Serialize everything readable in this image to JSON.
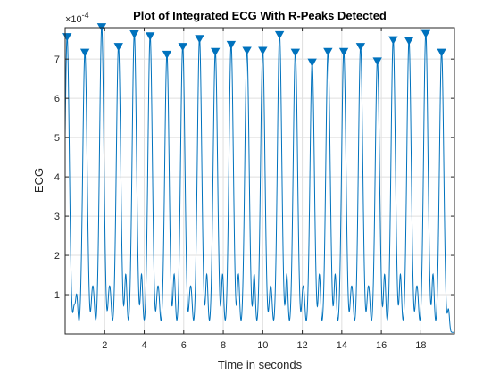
{
  "chart_data": {
    "type": "line",
    "title": "Plot of Integrated ECG With R-Peaks Detected",
    "xlabel": "Time in seconds",
    "ylabel": "ECG",
    "y_exponent_label": "×10",
    "y_exponent_power": "-4",
    "xlim": [
      0,
      19.7
    ],
    "ylim": [
      0,
      7.8
    ],
    "y_scale_note": "values in units of 1e-4",
    "x_ticks": [
      2,
      4,
      6,
      8,
      10,
      12,
      14,
      16,
      18
    ],
    "y_ticks": [
      1,
      2,
      3,
      4,
      5,
      6,
      7
    ],
    "grid": true,
    "series": [
      {
        "kind": "line",
        "color": "#0072bd"
      },
      {
        "kind": "peak-markers",
        "marker": "triangle-down",
        "color": "#0072bd",
        "x": [
          0.1,
          1.0,
          1.85,
          2.7,
          3.5,
          4.3,
          5.15,
          5.95,
          6.8,
          7.6,
          8.4,
          9.2,
          10.0,
          10.85,
          11.65,
          12.5,
          13.3,
          14.1,
          14.95,
          15.8,
          16.6,
          17.4,
          18.25,
          19.05
        ],
        "y": [
          7.55,
          7.15,
          7.8,
          7.3,
          7.62,
          7.57,
          7.1,
          7.3,
          7.5,
          7.17,
          7.35,
          7.2,
          7.2,
          7.6,
          7.15,
          6.9,
          7.17,
          7.17,
          7.3,
          6.93,
          7.47,
          7.45,
          7.63,
          7.15
        ]
      }
    ]
  }
}
